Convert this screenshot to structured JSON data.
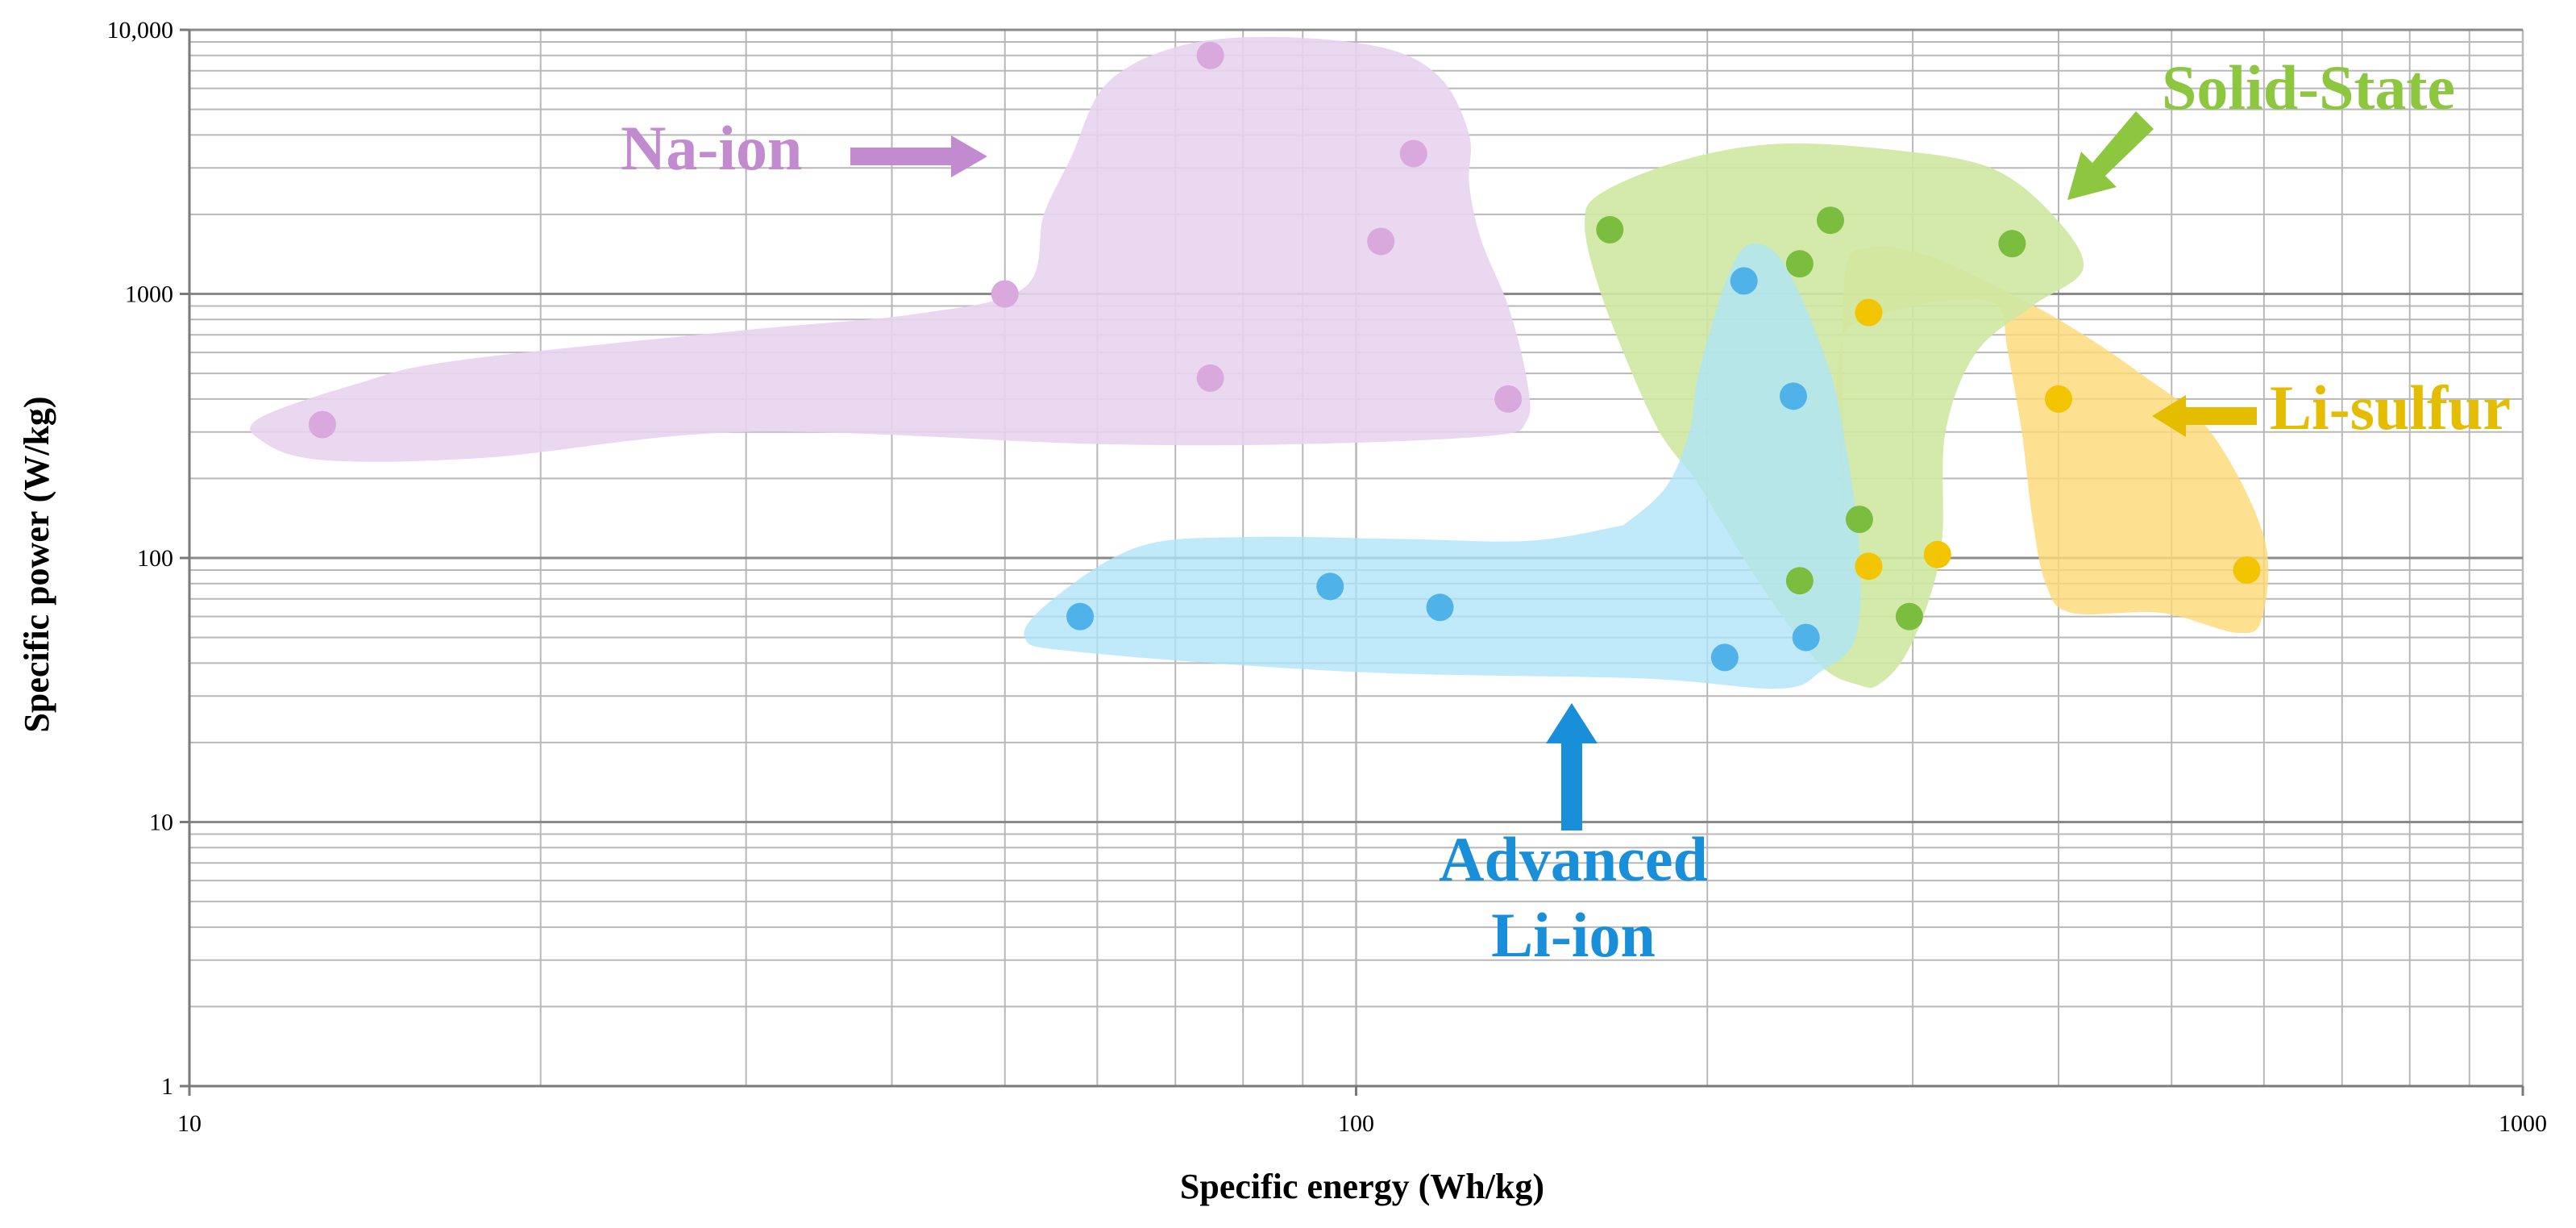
{
  "chart_data": {
    "type": "scatter",
    "xlabel": "Specific energy (Wh/kg)",
    "ylabel": "Specific power (W/kg)",
    "xscale": "log",
    "yscale": "log",
    "xlim": [
      10,
      1000
    ],
    "ylim": [
      1,
      10000
    ],
    "grid": true,
    "x_ticks": [
      {
        "value": 10,
        "label": "10"
      },
      {
        "value": 100,
        "label": "100"
      },
      {
        "value": 1000,
        "label": "1000"
      }
    ],
    "y_ticks": [
      {
        "value": 1,
        "label": "1"
      },
      {
        "value": 10,
        "label": "10"
      },
      {
        "value": 100,
        "label": "100"
      },
      {
        "value": 1000,
        "label": "1000"
      },
      {
        "value": 10000,
        "label": "10,000"
      }
    ],
    "series": [
      {
        "name": "Na-ion",
        "color": "#d9a8dc",
        "region_color": "#e8d3ee",
        "points": [
          [
            13,
            320
          ],
          [
            50,
            1000
          ],
          [
            75,
            8000
          ],
          [
            75,
            480
          ],
          [
            105,
            1580
          ],
          [
            112,
            3400
          ],
          [
            135,
            400
          ]
        ],
        "region": [
          [
            11.5,
            280
          ],
          [
            11.5,
            340
          ],
          [
            14,
            460
          ],
          [
            17,
            560
          ],
          [
            30,
            730
          ],
          [
            42,
            840
          ],
          [
            52,
            1060
          ],
          [
            54,
            2000
          ],
          [
            57,
            3300
          ],
          [
            61,
            6200
          ],
          [
            70,
            8600
          ],
          [
            84,
            9400
          ],
          [
            105,
            8600
          ],
          [
            118,
            6600
          ],
          [
            125,
            4000
          ],
          [
            125,
            2600
          ],
          [
            128,
            1600
          ],
          [
            135,
            900
          ],
          [
            140,
            480
          ],
          [
            140,
            330
          ],
          [
            130,
            290
          ],
          [
            90,
            270
          ],
          [
            60,
            270
          ],
          [
            30,
            300
          ],
          [
            18,
            240
          ],
          [
            13,
            235
          ]
        ]
      },
      {
        "name": "Advanced Li-ion",
        "color": "#4fb3ea",
        "region_color": "#aee4f8",
        "points": [
          [
            58,
            60
          ],
          [
            95,
            78
          ],
          [
            118,
            65
          ],
          [
            207,
            42
          ],
          [
            215,
            1120
          ],
          [
            237,
            410
          ],
          [
            243,
            50
          ]
        ],
        "region": [
          [
            52,
            50
          ],
          [
            55,
            70
          ],
          [
            65,
            110
          ],
          [
            80,
            120
          ],
          [
            110,
            118
          ],
          [
            140,
            116
          ],
          [
            165,
            130
          ],
          [
            172,
            140
          ],
          [
            185,
            190
          ],
          [
            193,
            300
          ],
          [
            196,
            470
          ],
          [
            201,
            720
          ],
          [
            208,
            1150
          ],
          [
            216,
            1520
          ],
          [
            228,
            1450
          ],
          [
            240,
            1000
          ],
          [
            255,
            500
          ],
          [
            262,
            290
          ],
          [
            270,
            110
          ],
          [
            268,
            50
          ],
          [
            250,
            37
          ],
          [
            230,
            32
          ],
          [
            175,
            35
          ],
          [
            100,
            37
          ],
          [
            58,
            44
          ]
        ]
      },
      {
        "name": "Solid-State",
        "color": "#7bbd3e",
        "region_color": "#cfe8a2",
        "points": [
          [
            165,
            1750
          ],
          [
            240,
            1300
          ],
          [
            255,
            1900
          ],
          [
            270,
            140
          ],
          [
            240,
            82
          ],
          [
            298,
            60
          ],
          [
            365,
            1550
          ]
        ],
        "region": [
          [
            157,
            1850
          ],
          [
            162,
            2400
          ],
          [
            190,
            3200
          ],
          [
            230,
            3700
          ],
          [
            290,
            3500
          ],
          [
            350,
            3000
          ],
          [
            395,
            2000
          ],
          [
            420,
            1250
          ],
          [
            380,
            900
          ],
          [
            340,
            600
          ],
          [
            320,
            300
          ],
          [
            318,
            120
          ],
          [
            310,
            70
          ],
          [
            295,
            42
          ],
          [
            280,
            33
          ],
          [
            270,
            33
          ],
          [
            252,
            38
          ],
          [
            232,
            60
          ],
          [
            218,
            90
          ],
          [
            205,
            140
          ],
          [
            195,
            200
          ],
          [
            182,
            300
          ],
          [
            170,
            580
          ],
          [
            161,
            1100
          ]
        ]
      },
      {
        "name": "Li-sulfur",
        "color": "#f3c400",
        "region_color": "#fcd978",
        "points": [
          [
            275,
            850
          ],
          [
            275,
            93
          ],
          [
            315,
            103
          ],
          [
            400,
            400
          ],
          [
            580,
            90
          ]
        ],
        "region": [
          [
            262,
            1100
          ],
          [
            276,
            1500
          ],
          [
            305,
            1420
          ],
          [
            335,
            1200
          ],
          [
            400,
            800
          ],
          [
            470,
            500
          ],
          [
            540,
            300
          ],
          [
            600,
            120
          ],
          [
            598,
            60
          ],
          [
            570,
            52
          ],
          [
            490,
            62
          ],
          [
            410,
            62
          ],
          [
            390,
            80
          ],
          [
            380,
            140
          ],
          [
            372,
            300
          ],
          [
            362,
            600
          ],
          [
            355,
            900
          ],
          [
            330,
            950
          ],
          [
            300,
            900
          ],
          [
            275,
            800
          ],
          [
            262,
            700
          ],
          [
            258,
            400
          ],
          [
            262,
            150
          ]
        ]
      }
    ],
    "annotations": [
      {
        "text": "Na-ion",
        "color": "#c28bcf",
        "arrow": "right"
      },
      {
        "text": "Solid-State",
        "color": "#8dc63f",
        "arrow": "down-left"
      },
      {
        "text": "Li-sulfur",
        "color": "#e5bd00",
        "arrow": "left"
      },
      {
        "text": "Advanced",
        "color": "#1a8fd9",
        "arrow": "up"
      },
      {
        "text": "Li-ion",
        "color": "#1a8fd9",
        "arrow": "none"
      }
    ]
  }
}
